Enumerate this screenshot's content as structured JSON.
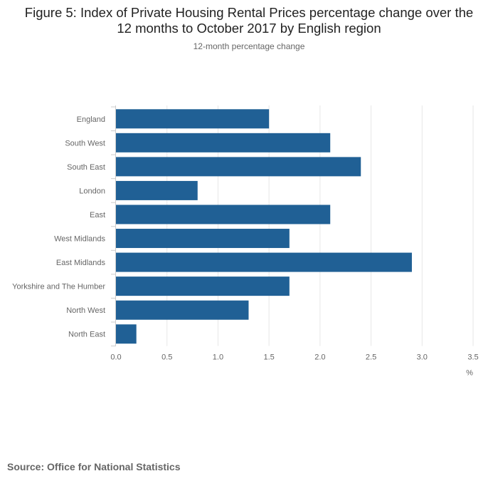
{
  "title_lines": [
    "Figure 5: Index of Private Housing Rental Prices percentage change over the",
    "12 months to October 2017 by English region"
  ],
  "subtitle": "12-month percentage change",
  "source": "Source: Office for National Statistics",
  "colors": {
    "bar": "#206095",
    "grid": "#e6e6e6",
    "axis_text": "#666666"
  },
  "chart_data": {
    "type": "bar",
    "orientation": "horizontal",
    "categories": [
      "England",
      "South West",
      "South East",
      "London",
      "East",
      "West Midlands",
      "East Midlands",
      "Yorkshire and The Humber",
      "North West",
      "North East"
    ],
    "values": [
      1.5,
      2.1,
      2.4,
      0.8,
      2.1,
      1.7,
      2.9,
      1.7,
      1.3,
      0.2
    ],
    "xlim": [
      0,
      3.5
    ],
    "xticks": [
      "0.0",
      "0.5",
      "1.0",
      "1.5",
      "2.0",
      "2.5",
      "3.0",
      "3.5"
    ],
    "xlabel": "%",
    "grid": true
  }
}
